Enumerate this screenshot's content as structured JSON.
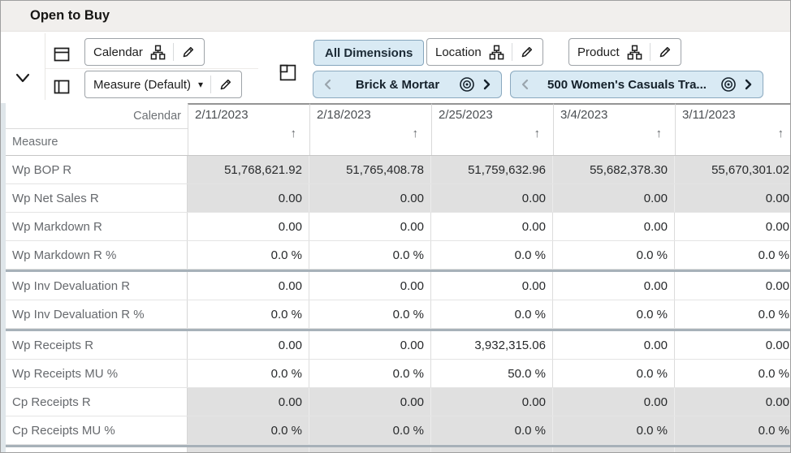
{
  "window": {
    "title": "Open to Buy"
  },
  "toolbar": {
    "calendar_button_label": "Calendar",
    "measure_button_label": "Measure (Default)",
    "all_dimensions_label": "All Dimensions",
    "location_button_label": "Location",
    "product_button_label": "Product",
    "location_context_tile": "Brick & Mortar",
    "product_context_tile": "500 Women's Casuals Tra..."
  },
  "grid": {
    "corner_top_label": "Calendar",
    "corner_bottom_label": "Measure",
    "columns": [
      "2/11/2023",
      "2/18/2023",
      "2/25/2023",
      "3/4/2023",
      "3/11/2023"
    ],
    "rows": [
      {
        "label": "Wp BOP R",
        "readonly": true,
        "values": [
          "51,768,621.92",
          "51,765,408.78",
          "51,759,632.96",
          "55,682,378.30",
          "55,670,301.02"
        ]
      },
      {
        "label": "Wp Net Sales R",
        "readonly": true,
        "values": [
          "0.00",
          "0.00",
          "0.00",
          "0.00",
          "0.00"
        ]
      },
      {
        "label": "Wp Markdown R",
        "values": [
          "0.00",
          "0.00",
          "0.00",
          "0.00",
          "0.00"
        ]
      },
      {
        "label": "Wp Markdown R %",
        "values": [
          "0.0 %",
          "0.0 %",
          "0.0 %",
          "0.0 %",
          "0.0 %"
        ]
      },
      {
        "label": "Wp Inv Devaluation R",
        "group_start": true,
        "values": [
          "0.00",
          "0.00",
          "0.00",
          "0.00",
          "0.00"
        ]
      },
      {
        "label": "Wp Inv Devaluation R %",
        "values": [
          "0.0 %",
          "0.0 %",
          "0.0 %",
          "0.0 %",
          "0.0 %"
        ]
      },
      {
        "label": "Wp Receipts R",
        "group_start": true,
        "values": [
          "0.00",
          "0.00",
          "3,932,315.06",
          "0.00",
          "0.00"
        ]
      },
      {
        "label": "Wp Receipts MU %",
        "values": [
          "0.0 %",
          "0.0 %",
          "50.0 %",
          "0.0 %",
          "0.0 %"
        ]
      },
      {
        "label": "Cp Receipts R",
        "readonly": true,
        "values": [
          "0.00",
          "0.00",
          "0.00",
          "0.00",
          "0.00"
        ]
      },
      {
        "label": "Cp Receipts MU %",
        "readonly": true,
        "values": [
          "0.0 %",
          "0.0 %",
          "0.0 %",
          "0.0 %",
          "0.0 %"
        ]
      }
    ]
  },
  "icons": {
    "sort_ascending": "↑",
    "dropdown_caret": "▾"
  },
  "colors": {
    "titlebar_bg": "#f1efed",
    "accent_blue_bg": "#d9eaf4",
    "accent_blue_border": "#8ba9bf",
    "readonly_cell_bg": "#e0e0e0",
    "block_separator": "#a7b1b9"
  }
}
